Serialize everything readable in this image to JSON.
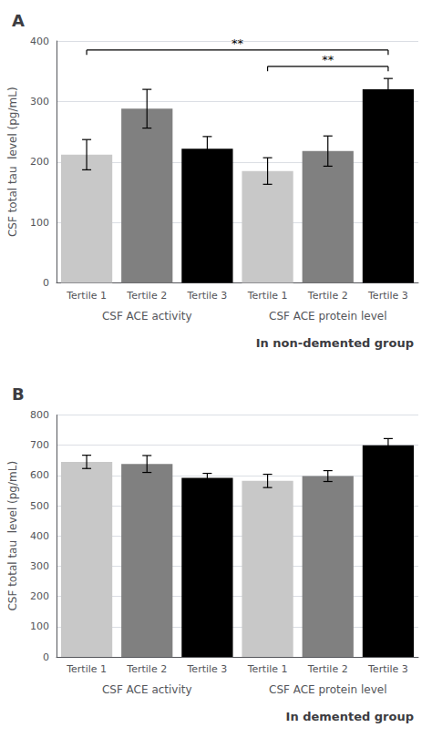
{
  "chart_data": [
    {
      "type": "bar",
      "title": "A",
      "subtitle": "In non-demented group",
      "ylabel": "CSF total tau  level (pg/mL)",
      "categories": [
        "Tertile 1",
        "Tertile 2",
        "Tertile 3",
        "Tertile 1",
        "Tertile 2",
        "Tertile 3"
      ],
      "values": [
        212,
        288,
        222,
        185,
        218,
        320
      ],
      "errors": [
        25,
        32,
        20,
        22,
        25,
        18
      ],
      "colors": [
        "#c8c8c8",
        "#808080",
        "#000000",
        "#c8c8c8",
        "#808080",
        "#000000"
      ],
      "group_labels": [
        "CSF ACE activity",
        "CSF ACE protein level"
      ],
      "brackets": [
        {
          "from": 0,
          "to": 5,
          "y": 385,
          "tick_down": 8,
          "label": "**"
        },
        {
          "from": 3,
          "to": 5,
          "y": 358,
          "tick_down": 8,
          "label": "**"
        }
      ],
      "ylim": [
        0,
        400
      ],
      "yticks": [
        0,
        100,
        200,
        300,
        400
      ],
      "grid": true
    },
    {
      "type": "bar",
      "title": "B",
      "subtitle": "In demented group",
      "ylabel": "CSF total tau  level (pg/mL)",
      "categories": [
        "Tertile 1",
        "Tertile 2",
        "Tertile 3",
        "Tertile 1",
        "Tertile 2",
        "Tertile 3"
      ],
      "values": [
        645,
        638,
        592,
        582,
        598,
        700
      ],
      "errors": [
        22,
        28,
        15,
        22,
        18,
        22
      ],
      "colors": [
        "#c8c8c8",
        "#808080",
        "#000000",
        "#c8c8c8",
        "#808080",
        "#000000"
      ],
      "group_labels": [
        "CSF ACE activity",
        "CSF ACE protein level"
      ],
      "ylim": [
        0,
        800
      ],
      "yticks": [
        0,
        100,
        200,
        300,
        400,
        500,
        600,
        700,
        800
      ],
      "grid": true
    }
  ]
}
